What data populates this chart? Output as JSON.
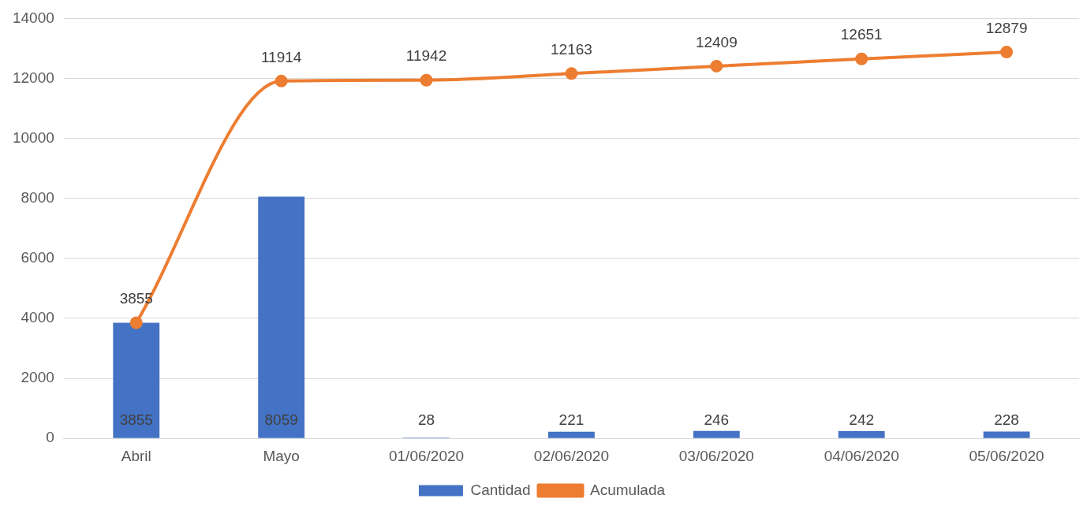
{
  "chart_data": {
    "type": "bar",
    "categories": [
      "Abril",
      "Mayo",
      "01/06/2020",
      "02/06/2020",
      "03/06/2020",
      "04/06/2020",
      "05/06/2020"
    ],
    "series": [
      {
        "name": "Cantidad",
        "color": "#4472c4",
        "values": [
          3855,
          8059,
          28,
          221,
          246,
          242,
          228
        ]
      },
      {
        "name": "Acumulada",
        "type": "line",
        "color": "#ed7d31",
        "marker": "circle",
        "values": [
          3855,
          11914,
          11942,
          12163,
          12409,
          12651,
          12879
        ]
      }
    ],
    "ylim": [
      0,
      14000
    ],
    "yticks": [
      0,
      2000,
      4000,
      6000,
      8000,
      10000,
      12000,
      14000
    ],
    "grid": "y",
    "legend": "bottom",
    "data_labels": true
  }
}
